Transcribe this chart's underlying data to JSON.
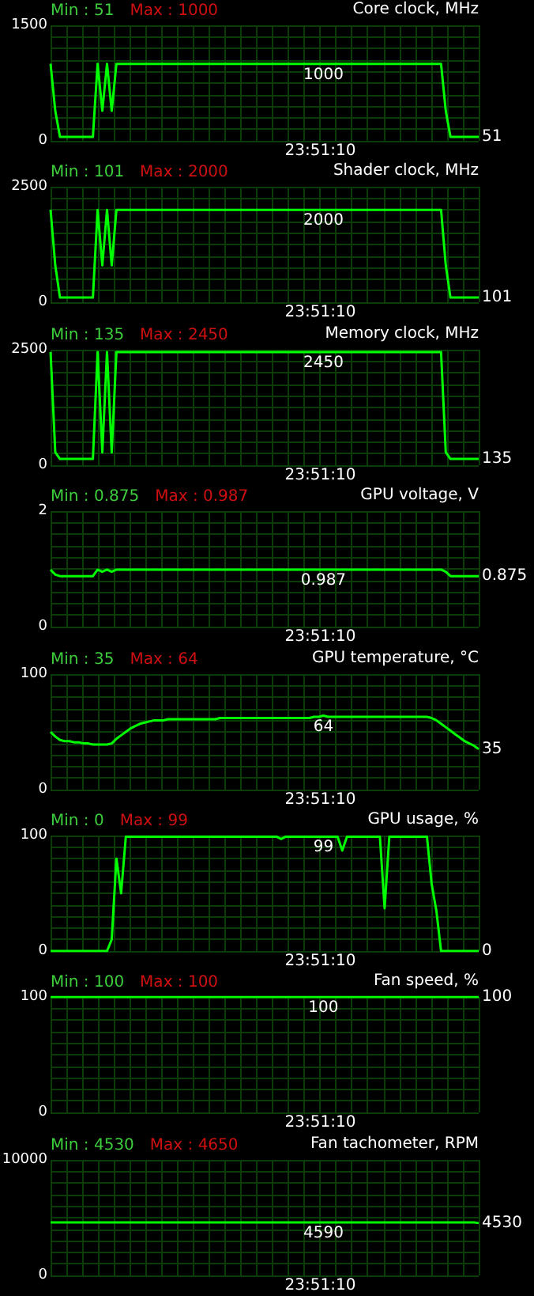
{
  "chart_data": [
    {
      "type": "line",
      "title": "Core clock, MHz",
      "annotations": [
        "Min : 51",
        "Max : 1000",
        "23:51:10"
      ],
      "color": "#00ff00",
      "ylim": [
        0,
        1500
      ],
      "yticks": [
        0,
        1500
      ],
      "grid": true,
      "tick_labels": "y",
      "categories": [
        null,
        null,
        null,
        null,
        null,
        null,
        null,
        null,
        null,
        null,
        null,
        null,
        null,
        null,
        null,
        null,
        null,
        null,
        null,
        null,
        null,
        null,
        null,
        null,
        null,
        null,
        null,
        null,
        null,
        null,
        null,
        null,
        null,
        null,
        null,
        null,
        null,
        null,
        null,
        null,
        null,
        null,
        null,
        null,
        null,
        null,
        null,
        null,
        null,
        null,
        null,
        null,
        null,
        null,
        null,
        null,
        null,
        null,
        null,
        null,
        null,
        null,
        null,
        null,
        null,
        null,
        null,
        null,
        null,
        null,
        null,
        null,
        null,
        null,
        null,
        null,
        null,
        null,
        null,
        null,
        null,
        null,
        null,
        null,
        null,
        null,
        null,
        null,
        null,
        null,
        null,
        null
      ],
      "values": [
        1000,
        390,
        51,
        51,
        51,
        51,
        51,
        51,
        51,
        51,
        1000,
        390,
        1000,
        390,
        1000,
        1000,
        1000,
        1000,
        1000,
        1000,
        1000,
        1000,
        1000,
        1000,
        1000,
        1000,
        1000,
        1000,
        1000,
        1000,
        1000,
        1000,
        1000,
        1000,
        1000,
        1000,
        1000,
        1000,
        1000,
        1000,
        1000,
        1000,
        1000,
        1000,
        1000,
        1000,
        1000,
        1000,
        1000,
        1000,
        1000,
        1000,
        1000,
        1000,
        1000,
        1000,
        1000,
        1000,
        1000,
        1000,
        1000,
        1000,
        1000,
        1000,
        1000,
        1000,
        1000,
        1000,
        1000,
        1000,
        1000,
        1000,
        1000,
        1000,
        1000,
        1000,
        1000,
        1000,
        1000,
        1000,
        1000,
        1000,
        1000,
        1000,
        390,
        51,
        51,
        51,
        51,
        51,
        51,
        51
      ],
      "value_labels": [
        null,
        null,
        null,
        null,
        null,
        null,
        null,
        null,
        null,
        null,
        null,
        null,
        null,
        null,
        null,
        null,
        null,
        null,
        null,
        null,
        null,
        null,
        null,
        null,
        null,
        null,
        null,
        null,
        null,
        null,
        null,
        null,
        null,
        null,
        null,
        null,
        null,
        null,
        null,
        null,
        null,
        null,
        null,
        null,
        null,
        null,
        null,
        null,
        null,
        null,
        null,
        null,
        null,
        null,
        null,
        null,
        null,
        null,
        "1000",
        null,
        null,
        null,
        null,
        null,
        null,
        null,
        null,
        null,
        null,
        null,
        null,
        null,
        null,
        null,
        null,
        null,
        null,
        null,
        null,
        null,
        null,
        null,
        null,
        null,
        null,
        null,
        null,
        null,
        null,
        null,
        null,
        "51"
      ]
    },
    {
      "type": "line",
      "title": "Shader clock, MHz",
      "annotations": [
        "Min : 101",
        "Max : 2000",
        "23:51:10"
      ],
      "color": "#00ff00",
      "ylim": [
        0,
        2500
      ],
      "yticks": [
        0,
        2500
      ],
      "grid": true,
      "tick_labels": "y",
      "categories": [
        null,
        null,
        null,
        null,
        null,
        null,
        null,
        null,
        null,
        null,
        null,
        null,
        null,
        null,
        null,
        null,
        null,
        null,
        null,
        null,
        null,
        null,
        null,
        null,
        null,
        null,
        null,
        null,
        null,
        null,
        null,
        null,
        null,
        null,
        null,
        null,
        null,
        null,
        null,
        null,
        null,
        null,
        null,
        null,
        null,
        null,
        null,
        null,
        null,
        null,
        null,
        null,
        null,
        null,
        null,
        null,
        null,
        null,
        null,
        null,
        null,
        null,
        null,
        null,
        null,
        null,
        null,
        null,
        null,
        null,
        null,
        null,
        null,
        null,
        null,
        null,
        null,
        null,
        null,
        null,
        null,
        null,
        null,
        null,
        null,
        null,
        null,
        null,
        null,
        null,
        null,
        null
      ],
      "values": [
        2000,
        800,
        101,
        101,
        101,
        101,
        101,
        101,
        101,
        101,
        2000,
        800,
        2000,
        800,
        2000,
        2000,
        2000,
        2000,
        2000,
        2000,
        2000,
        2000,
        2000,
        2000,
        2000,
        2000,
        2000,
        2000,
        2000,
        2000,
        2000,
        2000,
        2000,
        2000,
        2000,
        2000,
        2000,
        2000,
        2000,
        2000,
        2000,
        2000,
        2000,
        2000,
        2000,
        2000,
        2000,
        2000,
        2000,
        2000,
        2000,
        2000,
        2000,
        2000,
        2000,
        2000,
        2000,
        2000,
        2000,
        2000,
        2000,
        2000,
        2000,
        2000,
        2000,
        2000,
        2000,
        2000,
        2000,
        2000,
        2000,
        2000,
        2000,
        2000,
        2000,
        2000,
        2000,
        2000,
        2000,
        2000,
        2000,
        2000,
        2000,
        2000,
        800,
        101,
        101,
        101,
        101,
        101,
        101,
        101
      ],
      "value_labels": [
        null,
        null,
        null,
        null,
        null,
        null,
        null,
        null,
        null,
        null,
        null,
        null,
        null,
        null,
        null,
        null,
        null,
        null,
        null,
        null,
        null,
        null,
        null,
        null,
        null,
        null,
        null,
        null,
        null,
        null,
        null,
        null,
        null,
        null,
        null,
        null,
        null,
        null,
        null,
        null,
        null,
        null,
        null,
        null,
        null,
        null,
        null,
        null,
        null,
        null,
        null,
        null,
        null,
        null,
        null,
        null,
        null,
        null,
        "2000",
        null,
        null,
        null,
        null,
        null,
        null,
        null,
        null,
        null,
        null,
        null,
        null,
        null,
        null,
        null,
        null,
        null,
        null,
        null,
        null,
        null,
        null,
        null,
        null,
        null,
        null,
        null,
        null,
        null,
        null,
        null,
        null,
        "101"
      ]
    },
    {
      "type": "line",
      "title": "Memory clock, MHz",
      "annotations": [
        "Min : 135",
        "Max : 2450",
        "23:51:10"
      ],
      "color": "#00ff00",
      "ylim": [
        0,
        2500
      ],
      "yticks": [
        0,
        2500
      ],
      "grid": true,
      "tick_labels": "y",
      "categories": [
        null,
        null,
        null,
        null,
        null,
        null,
        null,
        null,
        null,
        null,
        null,
        null,
        null,
        null,
        null,
        null,
        null,
        null,
        null,
        null,
        null,
        null,
        null,
        null,
        null,
        null,
        null,
        null,
        null,
        null,
        null,
        null,
        null,
        null,
        null,
        null,
        null,
        null,
        null,
        null,
        null,
        null,
        null,
        null,
        null,
        null,
        null,
        null,
        null,
        null,
        null,
        null,
        null,
        null,
        null,
        null,
        null,
        null,
        null,
        null,
        null,
        null,
        null,
        null,
        null,
        null,
        null,
        null,
        null,
        null,
        null,
        null,
        null,
        null,
        null,
        null,
        null,
        null,
        null,
        null,
        null,
        null,
        null,
        null,
        null,
        null,
        null,
        null,
        null,
        null,
        null,
        null
      ],
      "values": [
        2450,
        280,
        135,
        135,
        135,
        135,
        135,
        135,
        135,
        135,
        2450,
        280,
        2450,
        280,
        2450,
        2450,
        2450,
        2450,
        2450,
        2450,
        2450,
        2450,
        2450,
        2450,
        2450,
        2450,
        2450,
        2450,
        2450,
        2450,
        2450,
        2450,
        2450,
        2450,
        2450,
        2450,
        2450,
        2450,
        2450,
        2450,
        2450,
        2450,
        2450,
        2450,
        2450,
        2450,
        2450,
        2450,
        2450,
        2450,
        2450,
        2450,
        2450,
        2450,
        2450,
        2450,
        2450,
        2450,
        2450,
        2450,
        2450,
        2450,
        2450,
        2450,
        2450,
        2450,
        2450,
        2450,
        2450,
        2450,
        2450,
        2450,
        2450,
        2450,
        2450,
        2450,
        2450,
        2450,
        2450,
        2450,
        2450,
        2450,
        2450,
        2450,
        280,
        135,
        135,
        135,
        135,
        135,
        135,
        135
      ],
      "value_labels": [
        null,
        null,
        null,
        null,
        null,
        null,
        null,
        null,
        null,
        null,
        null,
        null,
        null,
        null,
        null,
        null,
        null,
        null,
        null,
        null,
        null,
        null,
        null,
        null,
        null,
        null,
        null,
        null,
        null,
        null,
        null,
        null,
        null,
        null,
        null,
        null,
        null,
        null,
        null,
        null,
        null,
        null,
        null,
        null,
        null,
        null,
        null,
        null,
        null,
        null,
        null,
        null,
        null,
        null,
        null,
        null,
        null,
        null,
        "2450",
        null,
        null,
        null,
        null,
        null,
        null,
        null,
        null,
        null,
        null,
        null,
        null,
        null,
        null,
        null,
        null,
        null,
        null,
        null,
        null,
        null,
        null,
        null,
        null,
        null,
        null,
        null,
        null,
        null,
        null,
        null,
        null,
        "135"
      ]
    },
    {
      "type": "line",
      "title": "GPU voltage, V",
      "annotations": [
        "Min : 0.875",
        "Max : 0.987",
        "23:51:10"
      ],
      "color": "#00ff00",
      "ylim": [
        0,
        2
      ],
      "yticks": [
        0,
        2
      ],
      "grid": true,
      "tick_labels": "y",
      "categories": [
        null,
        null,
        null,
        null,
        null,
        null,
        null,
        null,
        null,
        null,
        null,
        null,
        null,
        null,
        null,
        null,
        null,
        null,
        null,
        null,
        null,
        null,
        null,
        null,
        null,
        null,
        null,
        null,
        null,
        null,
        null,
        null,
        null,
        null,
        null,
        null,
        null,
        null,
        null,
        null,
        null,
        null,
        null,
        null,
        null,
        null,
        null,
        null,
        null,
        null,
        null,
        null,
        null,
        null,
        null,
        null,
        null,
        null,
        null,
        null,
        null,
        null,
        null,
        null,
        null,
        null,
        null,
        null,
        null,
        null,
        null,
        null,
        null,
        null,
        null,
        null,
        null,
        null,
        null,
        null,
        null,
        null,
        null,
        null,
        null,
        null,
        null,
        null,
        null,
        null,
        null,
        null
      ],
      "values": [
        0.987,
        0.9,
        0.875,
        0.875,
        0.875,
        0.875,
        0.875,
        0.875,
        0.875,
        0.875,
        0.987,
        0.95,
        0.987,
        0.95,
        0.987,
        0.987,
        0.987,
        0.987,
        0.987,
        0.987,
        0.987,
        0.987,
        0.987,
        0.987,
        0.987,
        0.987,
        0.987,
        0.987,
        0.987,
        0.987,
        0.987,
        0.987,
        0.987,
        0.987,
        0.987,
        0.987,
        0.987,
        0.987,
        0.987,
        0.987,
        0.987,
        0.987,
        0.987,
        0.987,
        0.987,
        0.987,
        0.987,
        0.987,
        0.987,
        0.987,
        0.987,
        0.987,
        0.987,
        0.987,
        0.987,
        0.987,
        0.987,
        0.987,
        0.987,
        0.987,
        0.987,
        0.987,
        0.987,
        0.987,
        0.987,
        0.987,
        0.987,
        0.987,
        0.987,
        0.987,
        0.987,
        0.987,
        0.987,
        0.987,
        0.987,
        0.987,
        0.987,
        0.987,
        0.987,
        0.987,
        0.987,
        0.987,
        0.987,
        0.987,
        0.95,
        0.875,
        0.875,
        0.875,
        0.875,
        0.875,
        0.875,
        0.875
      ],
      "value_labels": [
        null,
        null,
        null,
        null,
        null,
        null,
        null,
        null,
        null,
        null,
        null,
        null,
        null,
        null,
        null,
        null,
        null,
        null,
        null,
        null,
        null,
        null,
        null,
        null,
        null,
        null,
        null,
        null,
        null,
        null,
        null,
        null,
        null,
        null,
        null,
        null,
        null,
        null,
        null,
        null,
        null,
        null,
        null,
        null,
        null,
        null,
        null,
        null,
        null,
        null,
        null,
        null,
        null,
        null,
        null,
        null,
        null,
        null,
        "0.987",
        null,
        null,
        null,
        null,
        null,
        null,
        null,
        null,
        null,
        null,
        null,
        null,
        null,
        null,
        null,
        null,
        null,
        null,
        null,
        null,
        null,
        null,
        null,
        null,
        null,
        null,
        null,
        null,
        null,
        null,
        null,
        null,
        "0.875"
      ]
    },
    {
      "type": "line",
      "title": "GPU temperature, °C",
      "annotations": [
        "Min : 35",
        "Max : 64",
        "23:51:10"
      ],
      "color": "#00ff00",
      "ylim": [
        0,
        100
      ],
      "yticks": [
        0,
        100
      ],
      "grid": true,
      "tick_labels": "y",
      "categories": [
        null,
        null,
        null,
        null,
        null,
        null,
        null,
        null,
        null,
        null,
        null,
        null,
        null,
        null,
        null,
        null,
        null,
        null,
        null,
        null,
        null,
        null,
        null,
        null,
        null,
        null,
        null,
        null,
        null,
        null,
        null,
        null,
        null,
        null,
        null,
        null,
        null,
        null,
        null,
        null,
        null,
        null,
        null,
        null,
        null,
        null,
        null,
        null,
        null,
        null,
        null,
        null,
        null,
        null,
        null,
        null,
        null,
        null,
        null,
        null,
        null,
        null,
        null,
        null,
        null,
        null,
        null,
        null,
        null,
        null,
        null,
        null,
        null,
        null,
        null,
        null,
        null,
        null,
        null,
        null,
        null,
        null,
        null,
        null,
        null,
        null,
        null,
        null,
        null,
        null,
        null,
        null
      ],
      "values": [
        50,
        46,
        43,
        42,
        42,
        41,
        41,
        40,
        40,
        39,
        39,
        39,
        39,
        40,
        44,
        47,
        50,
        53,
        55,
        57,
        58,
        59,
        60,
        60,
        60,
        61,
        61,
        61,
        61,
        61,
        61,
        61,
        61,
        61,
        61,
        61,
        62,
        62,
        62,
        62,
        62,
        62,
        62,
        62,
        62,
        62,
        62,
        62,
        62,
        62,
        62,
        62,
        62,
        62,
        62,
        62,
        63,
        63,
        64,
        63,
        63,
        63,
        63,
        63,
        63,
        63,
        63,
        63,
        63,
        63,
        63,
        63,
        63,
        63,
        63,
        63,
        63,
        63,
        63,
        63,
        63,
        62,
        60,
        57,
        54,
        51,
        48,
        45,
        42,
        40,
        38,
        35
      ],
      "value_labels": [
        null,
        null,
        null,
        null,
        null,
        null,
        null,
        null,
        null,
        null,
        null,
        null,
        null,
        null,
        null,
        null,
        null,
        null,
        null,
        null,
        null,
        null,
        null,
        null,
        null,
        null,
        null,
        null,
        null,
        null,
        null,
        null,
        null,
        null,
        null,
        null,
        null,
        null,
        null,
        null,
        null,
        null,
        null,
        null,
        null,
        null,
        null,
        null,
        null,
        null,
        null,
        null,
        null,
        null,
        null,
        null,
        null,
        null,
        "64",
        null,
        null,
        null,
        null,
        null,
        null,
        null,
        null,
        null,
        null,
        null,
        null,
        null,
        null,
        null,
        null,
        null,
        null,
        null,
        null,
        null,
        null,
        null,
        null,
        null,
        null,
        null,
        null,
        null,
        null,
        null,
        null,
        "35"
      ]
    },
    {
      "type": "line",
      "title": "GPU usage, %",
      "annotations": [
        "Min : 0",
        "Max : 99",
        "23:51:10"
      ],
      "color": "#00ff00",
      "ylim": [
        0,
        100
      ],
      "yticks": [
        0,
        100
      ],
      "grid": true,
      "tick_labels": "y",
      "categories": [
        null,
        null,
        null,
        null,
        null,
        null,
        null,
        null,
        null,
        null,
        null,
        null,
        null,
        null,
        null,
        null,
        null,
        null,
        null,
        null,
        null,
        null,
        null,
        null,
        null,
        null,
        null,
        null,
        null,
        null,
        null,
        null,
        null,
        null,
        null,
        null,
        null,
        null,
        null,
        null,
        null,
        null,
        null,
        null,
        null,
        null,
        null,
        null,
        null,
        null,
        null,
        null,
        null,
        null,
        null,
        null,
        null,
        null,
        null,
        null,
        null,
        null,
        null,
        null,
        null,
        null,
        null,
        null,
        null,
        null,
        null,
        null,
        null,
        null,
        null,
        null,
        null,
        null,
        null,
        null,
        null,
        null,
        null,
        null,
        null,
        null,
        null,
        null,
        null,
        null,
        null,
        null
      ],
      "values": [
        0,
        0,
        0,
        0,
        0,
        0,
        0,
        0,
        0,
        0,
        0,
        0,
        0,
        10,
        80,
        50,
        99,
        99,
        99,
        99,
        99,
        99,
        99,
        99,
        99,
        99,
        99,
        99,
        99,
        99,
        99,
        99,
        99,
        99,
        99,
        99,
        99,
        99,
        99,
        99,
        99,
        99,
        99,
        99,
        99,
        99,
        99,
        99,
        99,
        97,
        99,
        99,
        99,
        99,
        99,
        99,
        99,
        99,
        99,
        99,
        99,
        99,
        87,
        99,
        99,
        99,
        99,
        99,
        99,
        99,
        99,
        37,
        99,
        99,
        99,
        99,
        99,
        99,
        99,
        99,
        99,
        58,
        35,
        0,
        0,
        0,
        0,
        0,
        0,
        0,
        0,
        0
      ],
      "value_labels": [
        null,
        null,
        null,
        null,
        null,
        null,
        null,
        null,
        null,
        null,
        null,
        null,
        null,
        null,
        null,
        null,
        null,
        null,
        null,
        null,
        null,
        null,
        null,
        null,
        null,
        null,
        null,
        null,
        null,
        null,
        null,
        null,
        null,
        null,
        null,
        null,
        null,
        null,
        null,
        null,
        null,
        null,
        null,
        null,
        null,
        null,
        null,
        null,
        null,
        null,
        null,
        null,
        null,
        null,
        null,
        null,
        null,
        null,
        "99",
        null,
        null,
        null,
        null,
        null,
        null,
        null,
        null,
        null,
        null,
        null,
        null,
        null,
        null,
        null,
        null,
        null,
        null,
        null,
        null,
        null,
        null,
        null,
        null,
        null,
        null,
        null,
        null,
        null,
        null,
        null,
        null,
        "0"
      ]
    },
    {
      "type": "line",
      "title": "Fan speed, %",
      "annotations": [
        "Min : 100",
        "Max : 100",
        "23:51:10"
      ],
      "color": "#00ff00",
      "ylim": [
        0,
        100
      ],
      "yticks": [
        0,
        100
      ],
      "grid": true,
      "tick_labels": "y",
      "categories": [
        null,
        null,
        null,
        null,
        null,
        null,
        null,
        null,
        null,
        null,
        null,
        null,
        null,
        null,
        null,
        null,
        null,
        null,
        null,
        null,
        null,
        null,
        null,
        null,
        null,
        null,
        null,
        null,
        null,
        null,
        null,
        null,
        null,
        null,
        null,
        null,
        null,
        null,
        null,
        null,
        null,
        null,
        null,
        null,
        null,
        null,
        null,
        null,
        null,
        null,
        null,
        null,
        null,
        null,
        null,
        null,
        null,
        null,
        null,
        null,
        null,
        null,
        null,
        null,
        null,
        null,
        null,
        null,
        null,
        null,
        null,
        null,
        null,
        null,
        null,
        null,
        null,
        null,
        null,
        null,
        null,
        null,
        null,
        null,
        null,
        null,
        null,
        null,
        null,
        null,
        null,
        null
      ],
      "values": [
        100,
        100,
        100,
        100,
        100,
        100,
        100,
        100,
        100,
        100,
        100,
        100,
        100,
        100,
        100,
        100,
        100,
        100,
        100,
        100,
        100,
        100,
        100,
        100,
        100,
        100,
        100,
        100,
        100,
        100,
        100,
        100,
        100,
        100,
        100,
        100,
        100,
        100,
        100,
        100,
        100,
        100,
        100,
        100,
        100,
        100,
        100,
        100,
        100,
        100,
        100,
        100,
        100,
        100,
        100,
        100,
        100,
        100,
        100,
        100,
        100,
        100,
        100,
        100,
        100,
        100,
        100,
        100,
        100,
        100,
        100,
        100,
        100,
        100,
        100,
        100,
        100,
        100,
        100,
        100,
        100,
        100,
        100,
        100,
        100,
        100,
        100,
        100,
        100,
        100,
        100,
        100
      ],
      "value_labels": [
        null,
        null,
        null,
        null,
        null,
        null,
        null,
        null,
        null,
        null,
        null,
        null,
        null,
        null,
        null,
        null,
        null,
        null,
        null,
        null,
        null,
        null,
        null,
        null,
        null,
        null,
        null,
        null,
        null,
        null,
        null,
        null,
        null,
        null,
        null,
        null,
        null,
        null,
        null,
        null,
        null,
        null,
        null,
        null,
        null,
        null,
        null,
        null,
        null,
        null,
        null,
        null,
        null,
        null,
        null,
        null,
        null,
        null,
        "100",
        null,
        null,
        null,
        null,
        null,
        null,
        null,
        null,
        null,
        null,
        null,
        null,
        null,
        null,
        null,
        null,
        null,
        null,
        null,
        null,
        null,
        null,
        null,
        null,
        null,
        null,
        null,
        null,
        null,
        null,
        null,
        null,
        "100"
      ]
    },
    {
      "type": "line",
      "title": "Fan tachometer, RPM",
      "annotations": [
        "Min : 4530",
        "Max : 4650",
        "23:51:10"
      ],
      "color": "#00ff00",
      "ylim": [
        0,
        10000
      ],
      "yticks": [
        0,
        10000
      ],
      "grid": true,
      "tick_labels": "y",
      "categories": [
        null,
        null,
        null,
        null,
        null,
        null,
        null,
        null,
        null,
        null,
        null,
        null,
        null,
        null,
        null,
        null,
        null,
        null,
        null,
        null,
        null,
        null,
        null,
        null,
        null,
        null,
        null,
        null,
        null,
        null,
        null,
        null,
        null,
        null,
        null,
        null,
        null,
        null,
        null,
        null,
        null,
        null,
        null,
        null,
        null,
        null,
        null,
        null,
        null,
        null,
        null,
        null,
        null,
        null,
        null,
        null,
        null,
        null,
        null,
        null,
        null,
        null,
        null,
        null,
        null,
        null,
        null,
        null,
        null,
        null,
        null,
        null,
        null,
        null,
        null,
        null,
        null,
        null,
        null,
        null,
        null,
        null,
        null,
        null,
        null,
        null,
        null,
        null,
        null,
        null,
        null,
        null
      ],
      "values": [
        4590,
        4590,
        4590,
        4590,
        4590,
        4590,
        4590,
        4590,
        4590,
        4590,
        4590,
        4590,
        4590,
        4590,
        4590,
        4590,
        4590,
        4590,
        4590,
        4590,
        4590,
        4590,
        4590,
        4590,
        4590,
        4590,
        4590,
        4590,
        4590,
        4590,
        4590,
        4590,
        4590,
        4590,
        4590,
        4590,
        4590,
        4590,
        4590,
        4590,
        4590,
        4590,
        4590,
        4590,
        4590,
        4590,
        4590,
        4590,
        4590,
        4590,
        4590,
        4590,
        4590,
        4590,
        4590,
        4590,
        4590,
        4590,
        4590,
        4590,
        4590,
        4590,
        4590,
        4590,
        4590,
        4590,
        4590,
        4590,
        4590,
        4590,
        4590,
        4590,
        4590,
        4590,
        4590,
        4590,
        4590,
        4590,
        4590,
        4590,
        4590,
        4590,
        4590,
        4590,
        4590,
        4590,
        4590,
        4590,
        4590,
        4590,
        4590,
        4530
      ],
      "value_labels": [
        null,
        null,
        null,
        null,
        null,
        null,
        null,
        null,
        null,
        null,
        null,
        null,
        null,
        null,
        null,
        null,
        null,
        null,
        null,
        null,
        null,
        null,
        null,
        null,
        null,
        null,
        null,
        null,
        null,
        null,
        null,
        null,
        null,
        null,
        null,
        null,
        null,
        null,
        null,
        null,
        null,
        null,
        null,
        null,
        null,
        null,
        null,
        null,
        null,
        null,
        null,
        null,
        null,
        null,
        null,
        null,
        null,
        null,
        "4590",
        null,
        null,
        null,
        null,
        null,
        null,
        null,
        null,
        null,
        null,
        null,
        null,
        null,
        null,
        null,
        null,
        null,
        null,
        null,
        null,
        null,
        null,
        null,
        null,
        null,
        null,
        null,
        null,
        null,
        null,
        null,
        null,
        "4530"
      ]
    }
  ]
}
